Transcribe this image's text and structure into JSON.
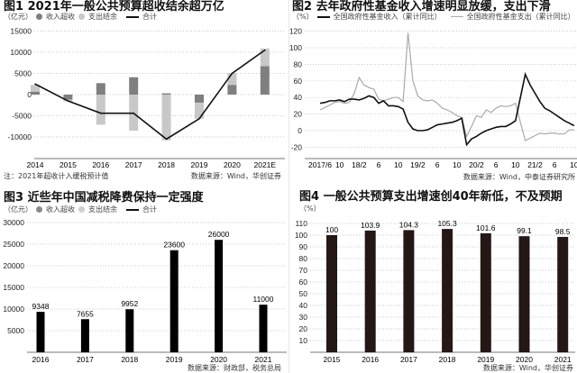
{
  "chart_data": [
    {
      "type": "bar",
      "stacked": true,
      "title": "图1 2021年一般公共预算超收结余超万亿",
      "unit": "（亿元）",
      "categories": [
        "2014",
        "2015",
        "2016",
        "2017",
        "2018",
        "2019",
        "2020",
        "2021E"
      ],
      "series": [
        {
          "name": "收入超收",
          "kind": "bar",
          "color": "#7f7f7f",
          "values": [
            700,
            -1200,
            2700,
            4100,
            300,
            -1900,
            2300,
            6700
          ]
        },
        {
          "name": "支出结余",
          "kind": "bar",
          "color": "#c8c8c8",
          "values": [
            1600,
            -400,
            -7100,
            -8500,
            -10800,
            -3800,
            2800,
            4200
          ]
        },
        {
          "name": "合计",
          "kind": "line",
          "color": "#111111",
          "values": [
            2500,
            -1500,
            -4400,
            -4400,
            -10500,
            -5700,
            5000,
            10500
          ]
        }
      ],
      "yticks": [
        15000,
        10000,
        5000,
        0,
        -5000,
        -10000
      ],
      "ylim": [
        -15000,
        15000
      ],
      "grid": true,
      "legend": "top-left",
      "note": "注：2021年超收计入缓税预计值",
      "source": "数据来源：Wind，华创证券"
    },
    {
      "type": "line",
      "title": "图2 去年政府性基金收入增速明显放缓，支出下滑",
      "unit": "（%）",
      "x_start": "2017-06",
      "x_end": "2021-10",
      "xticks": [
        "2017/6",
        "10",
        "18/2",
        "6",
        "10",
        "19/2",
        "6",
        "10",
        "20/2",
        "6",
        "10",
        "21/2",
        "6",
        "10"
      ],
      "series": [
        {
          "name": "全国政府性基金收入（累计同比）",
          "color": "#111111",
          "values": [
            33,
            34,
            36,
            36,
            37,
            35,
            38,
            38,
            37,
            39,
            42,
            40,
            33,
            36,
            30,
            30,
            29,
            26,
            10,
            2,
            0,
            0,
            1,
            4,
            7,
            8,
            9,
            10,
            12,
            15,
            -17,
            -10,
            -7,
            -3,
            0,
            2,
            4,
            5,
            5,
            8,
            12,
            40,
            68,
            55,
            45,
            35,
            27,
            24,
            20,
            16,
            12,
            9,
            6
          ]
        },
        {
          "name": "全国政府性基金支出（累计同比）",
          "color": "#aaaaaa",
          "values": [
            25,
            28,
            31,
            34,
            35,
            33,
            34,
            45,
            64,
            55,
            52,
            50,
            38,
            36,
            38,
            40,
            40,
            35,
            118,
            60,
            42,
            37,
            36,
            37,
            33,
            27,
            25,
            22,
            18,
            16,
            -7,
            5,
            18,
            16,
            25,
            22,
            27,
            30,
            29,
            30,
            33,
            10,
            -12,
            -9,
            -6,
            -3,
            -4,
            -3,
            -3,
            -4,
            -4,
            1,
            1
          ]
        }
      ],
      "yticks": [
        120,
        100,
        80,
        60,
        40,
        20,
        0,
        -20
      ],
      "ylim": [
        -33,
        120
      ],
      "grid": true,
      "legend": "top",
      "source": "数据来源：Wind，中泰证券研究所"
    },
    {
      "type": "bar",
      "title": "图3 近些年中国减税降费保持一定强度",
      "unit": "（亿元）",
      "legend_items": [
        "收入超收",
        "支出结余",
        "合计"
      ],
      "categories": [
        "2016",
        "2017",
        "2018",
        "2019",
        "2020",
        "2021"
      ],
      "values": [
        9348,
        7655,
        9952,
        23600,
        26000,
        11000
      ],
      "labels": [
        "9348",
        "7655",
        "9952",
        "23600",
        "26000",
        "11000"
      ],
      "yticks": [
        30000,
        25000,
        20000,
        15000,
        10000,
        5000
      ],
      "ylim": [
        0,
        30000
      ],
      "grid": true,
      "color": "#000000",
      "source": "数据来源：财政部，税务总局"
    },
    {
      "type": "bar",
      "title": "图4 一般公共预算支出增速创40年新低，不及预期",
      "unit": "（%）",
      "categories": [
        "2015",
        "2016",
        "2017",
        "2018",
        "2019",
        "2020",
        "2021"
      ],
      "values": [
        100,
        103.9,
        104.3,
        105.3,
        101.6,
        99.1,
        98.5
      ],
      "labels": [
        "100",
        "103.9",
        "104.3",
        "105.3",
        "101.6",
        "99.1",
        "98.5"
      ],
      "yticks": [
        110,
        100,
        90,
        80,
        70,
        60,
        50,
        40,
        30,
        20,
        10
      ],
      "ylim": [
        0,
        110
      ],
      "grid": true,
      "color": "#231815",
      "source": "数据来源：Wind，华创证券"
    }
  ]
}
